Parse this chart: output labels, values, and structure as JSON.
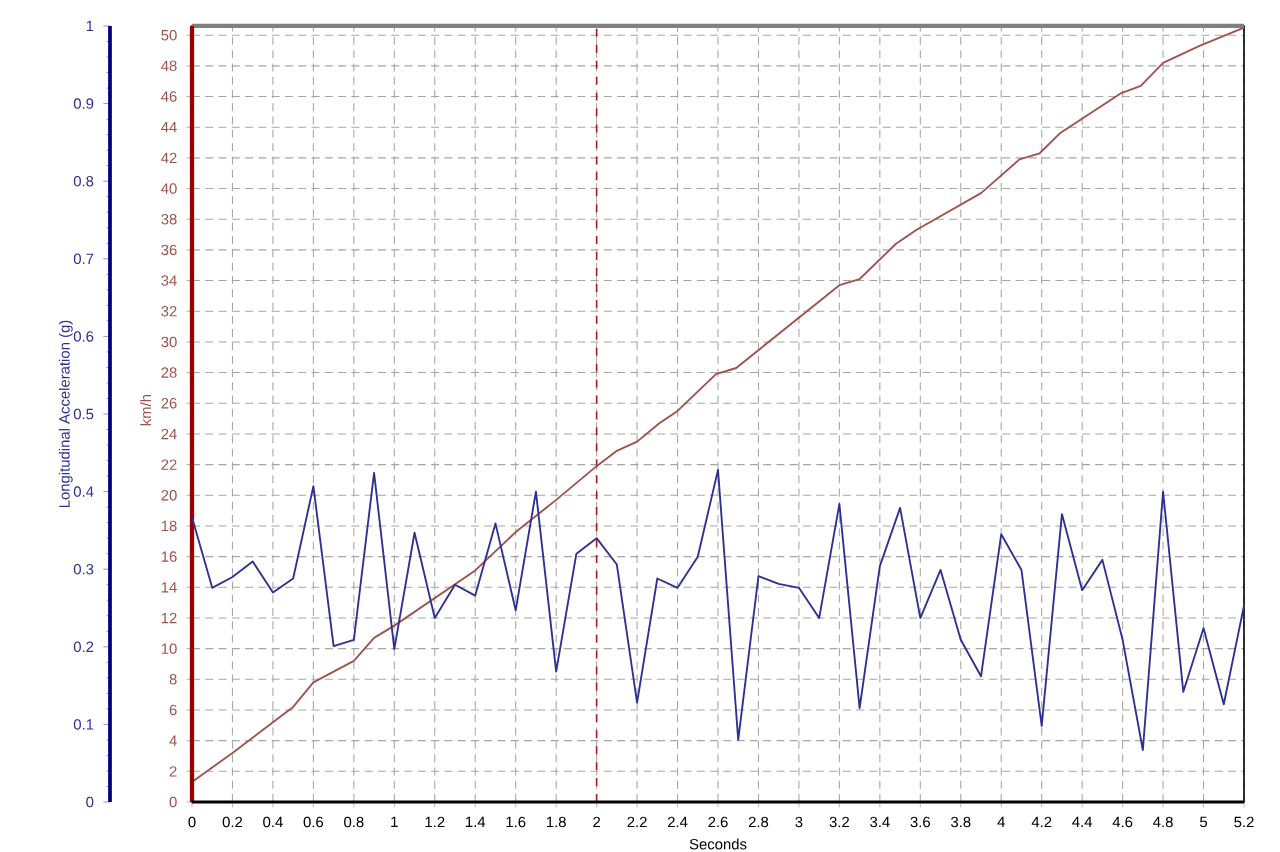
{
  "chart_data": {
    "type": "line",
    "xlabel": "Seconds",
    "ylabel": "Longitudinal Acceleration (g)",
    "y2label": "km/h",
    "x": [
      0,
      0.1,
      0.2,
      0.3,
      0.4,
      0.5,
      0.6,
      0.7,
      0.8,
      0.9,
      1.0,
      1.1,
      1.2,
      1.3,
      1.4,
      1.5,
      1.6,
      1.7,
      1.8,
      1.9,
      2.0,
      2.1,
      2.2,
      2.3,
      2.4,
      2.5,
      2.6,
      2.7,
      2.8,
      2.9,
      3.0,
      3.1,
      3.2,
      3.3,
      3.4,
      3.5,
      3.6,
      3.7,
      3.8,
      3.9,
      4.0,
      4.1,
      4.2,
      4.3,
      4.4,
      4.5,
      4.6,
      4.7,
      4.8,
      4.9,
      5.0,
      5.1,
      5.2
    ],
    "series": [
      {
        "color": "#2e3192",
        "values": [
          0.367,
          0.276,
          0.29,
          0.31,
          0.27,
          0.288,
          0.407,
          0.201,
          0.209,
          0.424,
          0.197,
          0.347,
          0.237,
          0.28,
          0.266,
          0.359,
          0.247,
          0.4,
          0.168,
          0.32,
          0.34,
          0.306,
          0.128,
          0.288,
          0.276,
          0.316,
          0.428,
          0.08,
          0.291,
          0.281,
          0.276,
          0.237,
          0.384,
          0.121,
          0.304,
          0.379,
          0.237,
          0.299,
          0.209,
          0.162,
          0.345,
          0.299,
          0.098,
          0.371,
          0.273,
          0.312,
          0.209,
          0.067,
          0.4,
          0.142,
          0.224,
          0.126,
          0.253
        ]
      },
      {
        "color": "#a0524d",
        "axis": "y2",
        "x": [
          0,
          0.2,
          0.4,
          0.5,
          0.6,
          0.8,
          0.9,
          1.0,
          1.2,
          1.4,
          1.6,
          1.8,
          2.0,
          2.1,
          2.2,
          2.31,
          2.4,
          2.59,
          2.69,
          3.2,
          3.3,
          3.48,
          3.58,
          3.9,
          4.09,
          4.19,
          4.29,
          4.59,
          4.69,
          4.8,
          4.98,
          5.2
        ],
        "values": [
          1.3,
          3.2,
          5.2,
          6.2,
          7.8,
          9.2,
          10.7,
          11.5,
          13.3,
          15.1,
          17.6,
          19.7,
          21.9,
          22.9,
          23.5,
          24.7,
          25.5,
          27.9,
          28.3,
          33.7,
          34.1,
          36.4,
          37.3,
          39.7,
          41.9,
          42.3,
          43.6,
          46.2,
          46.7,
          48.2,
          49.3,
          50.5
        ]
      }
    ],
    "xlim": [
      0,
      5.2
    ],
    "xticks": [
      0,
      0.2,
      0.4,
      0.6,
      0.8,
      1,
      1.2,
      1.4,
      1.6,
      1.8,
      2,
      2.2,
      2.4,
      2.6,
      2.8,
      3,
      3.2,
      3.4,
      3.6,
      3.8,
      4,
      4.2,
      4.4,
      4.6,
      4.8,
      5,
      5.2
    ],
    "ylim": [
      0,
      1
    ],
    "yticks": [
      0,
      0.1,
      0.2,
      0.3,
      0.4,
      0.5,
      0.6,
      0.7,
      0.8,
      0.9,
      1
    ],
    "y2lim": [
      0,
      50.6
    ],
    "y2ticks": [
      0,
      2,
      4,
      6,
      8,
      10,
      12,
      14,
      16,
      18,
      20,
      22,
      24,
      26,
      28,
      30,
      32,
      34,
      36,
      38,
      40,
      42,
      44,
      46,
      48,
      50
    ],
    "grid": true,
    "ref_lines": [
      {
        "axis": "x",
        "value": 2,
        "color": "#a02020",
        "line_style": "dashed"
      }
    ]
  }
}
